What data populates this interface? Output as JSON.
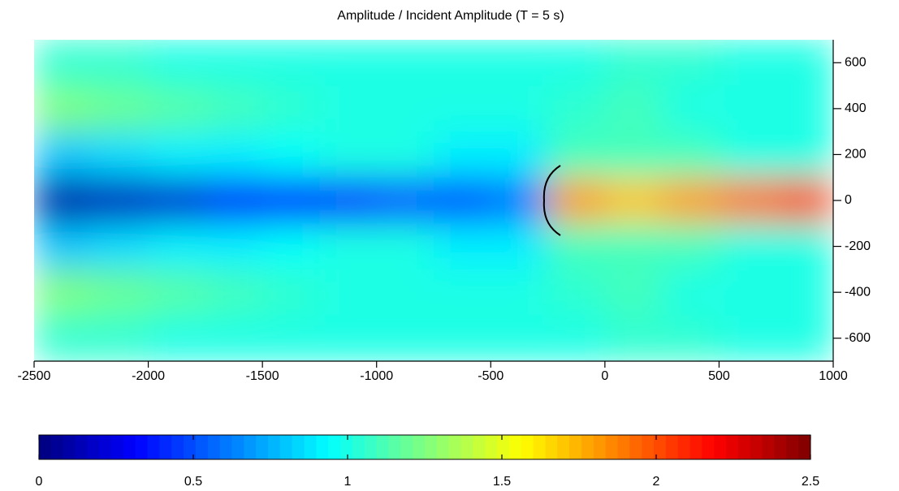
{
  "chart_data": {
    "type": "heatmap",
    "title": "Amplitude / Incident Amplitude (T = 5 s)",
    "colormap": "jet",
    "xbins": [
      -2500,
      -2250,
      -2000,
      -1750,
      -1500,
      -1250,
      -1000,
      -750,
      -500,
      -250,
      0,
      250,
      500,
      750,
      1000
    ],
    "ybins": [
      700,
      500,
      300,
      100,
      -100,
      -300,
      -500,
      -700
    ],
    "z": [
      [
        1.05,
        1.05,
        1.0,
        1.0,
        1.0,
        1.0,
        1.0,
        1.0,
        1.0,
        1.0,
        1.05,
        1.05,
        1.0,
        1.0
      ],
      [
        1.25,
        1.2,
        1.15,
        1.1,
        1.05,
        1.0,
        1.0,
        1.0,
        1.0,
        1.05,
        1.1,
        1.0,
        1.0,
        1.0
      ],
      [
        0.8,
        0.85,
        0.9,
        0.9,
        0.95,
        1.0,
        1.0,
        0.9,
        0.9,
        1.1,
        1.1,
        1.1,
        1.0,
        1.0
      ],
      [
        0.1,
        0.15,
        0.2,
        0.3,
        0.35,
        0.4,
        0.5,
        0.5,
        0.6,
        1.8,
        1.7,
        1.8,
        1.9,
        2.0
      ],
      [
        0.8,
        0.85,
        0.9,
        0.9,
        0.95,
        1.0,
        1.0,
        0.9,
        0.9,
        1.1,
        1.1,
        1.1,
        1.0,
        1.0
      ],
      [
        1.25,
        1.2,
        1.15,
        1.1,
        1.05,
        1.0,
        1.0,
        1.0,
        1.0,
        1.05,
        1.1,
        1.0,
        1.0,
        1.0
      ],
      [
        1.05,
        1.05,
        1.0,
        1.0,
        1.0,
        1.0,
        1.0,
        1.0,
        1.0,
        1.0,
        1.05,
        1.05,
        1.0,
        1.0
      ]
    ],
    "xlim": [
      -2500,
      1000
    ],
    "ylim": [
      -700,
      700
    ],
    "xticks": [
      -2500,
      -2000,
      -1500,
      -1000,
      -500,
      0,
      500,
      1000
    ],
    "yticks": [
      -600,
      -400,
      -200,
      0,
      200,
      400,
      600
    ],
    "clim": [
      0,
      2.5
    ],
    "cticks": [
      0,
      0.5,
      1,
      1.5,
      2,
      2.5
    ]
  }
}
